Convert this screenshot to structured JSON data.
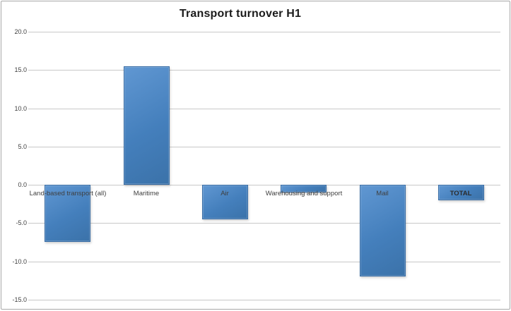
{
  "chart_data": {
    "type": "bar",
    "title": "Transport turnover H1",
    "categories": [
      "Land-based transport (all)",
      "Maritime",
      "Air",
      "Warehousing and support",
      "Mail",
      "TOTAL"
    ],
    "values": [
      -7.5,
      15.5,
      -4.5,
      -1.0,
      -12.0,
      -2.0
    ],
    "xlabel": "",
    "ylabel": "",
    "ylim": [
      -15.0,
      20.0
    ],
    "yticks": [
      20.0,
      15.0,
      10.0,
      5.0,
      0.0,
      -5.0,
      -10.0,
      -15.0
    ],
    "ytick_labels": [
      "20.0",
      "15.0",
      "10.0",
      "5.0",
      "0.0",
      "-5.0",
      "-10.0",
      "-15.0"
    ],
    "grid": true,
    "legend": false,
    "bold_labels": [
      "TOTAL"
    ],
    "colors": {
      "bar_fill": "#447fbc",
      "bar_fill_light": "#6097d2",
      "bar_fill_dark": "#3b72a9",
      "bar_border": "#386da6",
      "gridline": "#c8c8c8",
      "tick_text": "#404040",
      "title_text": "#1b1b1b",
      "frame_border": "#a8a8a8"
    }
  }
}
